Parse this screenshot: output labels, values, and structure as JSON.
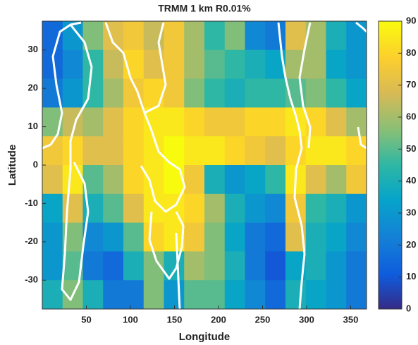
{
  "chart_data": {
    "type": "heatmap",
    "title": "TRMM 1 km R0.01%",
    "xlabel": "Longitude",
    "ylabel": "Latitude",
    "x": [
      11.5,
      34.5,
      57.5,
      80.5,
      103.5,
      126.5,
      149.5,
      172.5,
      195.5,
      218.5,
      241.5,
      264.5,
      287.5,
      310.5,
      333.5,
      356.5
    ],
    "y": [
      33.75,
      26.25,
      18.75,
      11.25,
      3.75,
      -3.75,
      -11.25,
      -18.75,
      -26.25,
      -33.75
    ],
    "values": [
      [
        15,
        30,
        55,
        70,
        75,
        65,
        75,
        60,
        45,
        55,
        25,
        20,
        70,
        60,
        40,
        30
      ],
      [
        15,
        25,
        45,
        65,
        80,
        70,
        75,
        60,
        50,
        45,
        40,
        35,
        60,
        60,
        35,
        30
      ],
      [
        20,
        30,
        45,
        60,
        75,
        80,
        75,
        55,
        45,
        40,
        45,
        45,
        50,
        55,
        45,
        35
      ],
      [
        55,
        65,
        60,
        70,
        80,
        85,
        85,
        80,
        75,
        75,
        80,
        80,
        85,
        80,
        70,
        60
      ],
      [
        75,
        80,
        70,
        70,
        80,
        85,
        90,
        85,
        85,
        80,
        75,
        70,
        80,
        85,
        85,
        80
      ],
      [
        70,
        85,
        50,
        60,
        80,
        85,
        90,
        75,
        40,
        30,
        35,
        45,
        85,
        70,
        60,
        75
      ],
      [
        35,
        70,
        40,
        50,
        70,
        85,
        85,
        80,
        60,
        40,
        30,
        25,
        75,
        45,
        40,
        30
      ],
      [
        30,
        55,
        25,
        30,
        50,
        80,
        85,
        75,
        55,
        35,
        20,
        15,
        70,
        40,
        35,
        25
      ],
      [
        30,
        50,
        20,
        15,
        40,
        55,
        40,
        60,
        55,
        40,
        20,
        10,
        35,
        40,
        30,
        20
      ],
      [
        40,
        55,
        40,
        20,
        20,
        55,
        30,
        50,
        50,
        35,
        25,
        15,
        40,
        35,
        30,
        20
      ]
    ],
    "xlim": [
      0,
      368
    ],
    "xticks": [
      50,
      100,
      150,
      200,
      250,
      300,
      350
    ],
    "ylim": [
      -37.5,
      37.5
    ],
    "yticks": [
      -30,
      -20,
      -10,
      0,
      10,
      20,
      30
    ],
    "colormap": "parula",
    "clim": [
      0,
      90
    ],
    "cticks": [
      0,
      10,
      20,
      30,
      40,
      50,
      60,
      70,
      80,
      90
    ]
  }
}
